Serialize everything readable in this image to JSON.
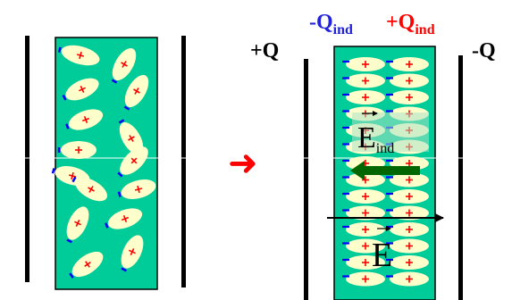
{
  "left_panel": {
    "plate_color": "#000000",
    "dielectric_color": "#00cc99",
    "molecule_color": "#ffffcc",
    "plus_color": "#ff0000",
    "minus_color": "#0000ff"
  },
  "arrow": {
    "symbol": "➜",
    "color": "#ff0000"
  },
  "right_panel": {
    "left_plate_label": "+Q",
    "right_plate_label": "-Q",
    "induced_left_label": "-Q",
    "induced_left_sub": "ind",
    "induced_right_label": "+Q",
    "induced_right_sub": "ind",
    "field_ind_symbol": "E",
    "field_ind_sub": "ind",
    "field_symbol": "E",
    "field_ind_arrow_color": "#006600",
    "field_arrow_color": "#000000",
    "dipole_plus": "+",
    "dipole_minus": "-"
  }
}
